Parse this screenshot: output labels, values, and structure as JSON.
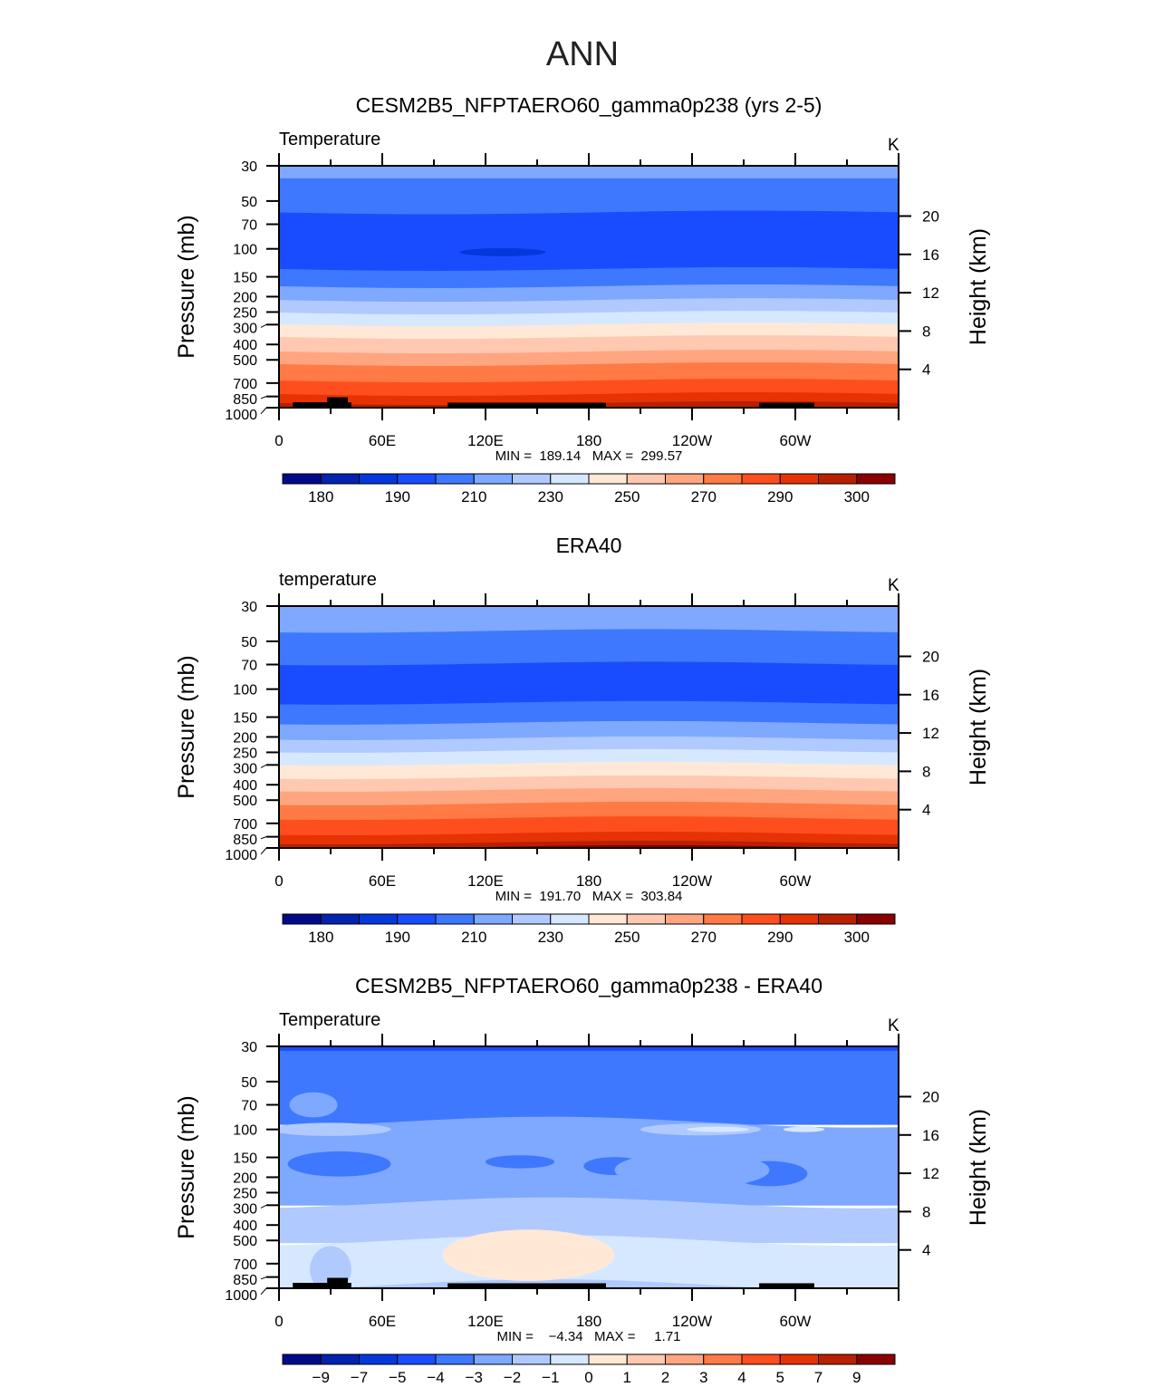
{
  "title": "ANN",
  "colors": [
    "#020a8a",
    "#0322b0",
    "#0437dc",
    "#1a4cff",
    "#3e78ff",
    "#7fa8ff",
    "#b0caff",
    "#d6e8ff",
    "#ffe8d6",
    "#ffc8b0",
    "#ffa680",
    "#ff7a45",
    "#ff4e1e",
    "#e63205",
    "#b82000",
    "#8b0000"
  ],
  "chart_data": [
    {
      "type": "heatmap",
      "title": "CESM2B5_NFPTAERO60_gamma0p238 (yrs 2-5)",
      "left_label": "Temperature",
      "units": "K",
      "ylabel": "Pressure (mb)",
      "ylabel_right": "Height (km)",
      "stats": "MIN =  189.14   MAX =  299.57",
      "xlim": [
        0,
        360
      ],
      "ylim": [
        1000,
        30
      ],
      "x_ticks": [
        {
          "v": 0,
          "l": "0"
        },
        {
          "v": 60,
          "l": "60E"
        },
        {
          "v": 120,
          "l": "120E"
        },
        {
          "v": 180,
          "l": "180"
        },
        {
          "v": 240,
          "l": "120W"
        },
        {
          "v": 300,
          "l": "60W"
        }
      ],
      "y_ticks": [
        "30",
        "50",
        "70",
        "100",
        "150",
        "200",
        "250",
        "300",
        "400",
        "500",
        "700",
        "850",
        "1000"
      ],
      "height_ticks": [
        "20",
        "16",
        "12",
        "8",
        "4"
      ],
      "levels": [
        "180",
        "",
        "190",
        "",
        "210",
        "",
        "230",
        "",
        "250",
        "",
        "270",
        "",
        "290",
        "",
        "300"
      ],
      "bands": [
        [
          30,
          36,
          5
        ],
        [
          36,
          59,
          4
        ],
        [
          59,
          134,
          3
        ],
        [
          134,
          172,
          4
        ],
        [
          172,
          210,
          5
        ],
        [
          210,
          252,
          6
        ],
        [
          252,
          299,
          7
        ],
        [
          299,
          359,
          8
        ],
        [
          359,
          443,
          9
        ],
        [
          443,
          532,
          10
        ],
        [
          532,
          675,
          11
        ],
        [
          675,
          821,
          12
        ],
        [
          821,
          936,
          13
        ],
        [
          936,
          1000,
          14
        ]
      ],
      "blobs": [
        [
          130,
          105,
          25,
          6,
          2
        ]
      ],
      "topography": [
        [
          8,
          42,
          925
        ],
        [
          28,
          40,
          860
        ],
        [
          98,
          190,
          930
        ],
        [
          279,
          311,
          930
        ]
      ]
    },
    {
      "type": "heatmap",
      "title": "ERA40",
      "left_label": "temperature",
      "units": "K",
      "ylabel": "Pressure (mb)",
      "ylabel_right": "Height (km)",
      "stats": "MIN =  191.70   MAX =  303.84",
      "xlim": [
        0,
        360
      ],
      "ylim": [
        1000,
        30
      ],
      "x_ticks": [
        {
          "v": 0,
          "l": "0"
        },
        {
          "v": 60,
          "l": "60E"
        },
        {
          "v": 120,
          "l": "120E"
        },
        {
          "v": 180,
          "l": "180"
        },
        {
          "v": 240,
          "l": "120W"
        },
        {
          "v": 300,
          "l": "60W"
        }
      ],
      "y_ticks": [
        "30",
        "50",
        "70",
        "100",
        "150",
        "200",
        "250",
        "300",
        "400",
        "500",
        "700",
        "850",
        "1000"
      ],
      "height_ticks": [
        "20",
        "16",
        "12",
        "8",
        "4"
      ],
      "levels": [
        "180",
        "",
        "190",
        "",
        "210",
        "",
        "230",
        "",
        "250",
        "",
        "270",
        "",
        "290",
        "",
        "300"
      ],
      "bands": [
        [
          30,
          43,
          5
        ],
        [
          43,
          69,
          4
        ],
        [
          69,
          122,
          3
        ],
        [
          122,
          163,
          4
        ],
        [
          163,
          204,
          5
        ],
        [
          204,
          245,
          6
        ],
        [
          245,
          295,
          7
        ],
        [
          295,
          359,
          8
        ],
        [
          359,
          431,
          9
        ],
        [
          431,
          525,
          10
        ],
        [
          525,
          649,
          11
        ],
        [
          649,
          811,
          12
        ],
        [
          811,
          924,
          13
        ],
        [
          924,
          985,
          14
        ],
        [
          985,
          1000,
          15
        ]
      ],
      "blobs": [],
      "topography": []
    },
    {
      "type": "heatmap",
      "title": "CESM2B5_NFPTAERO60_gamma0p238 - ERA40",
      "left_label": "Temperature",
      "units": "K",
      "ylabel": "Pressure (mb)",
      "ylabel_right": "Height (km)",
      "stats": "MIN =    −4.34   MAX =     1.71",
      "xlim": [
        0,
        360
      ],
      "ylim": [
        1000,
        30
      ],
      "x_ticks": [
        {
          "v": 0,
          "l": "0"
        },
        {
          "v": 60,
          "l": "60E"
        },
        {
          "v": 120,
          "l": "120E"
        },
        {
          "v": 180,
          "l": "180"
        },
        {
          "v": 240,
          "l": "120W"
        },
        {
          "v": 300,
          "l": "60W"
        }
      ],
      "y_ticks": [
        "30",
        "50",
        "70",
        "100",
        "150",
        "200",
        "250",
        "300",
        "400",
        "500",
        "700",
        "850",
        "1000"
      ],
      "height_ticks": [
        "20",
        "16",
        "12",
        "8",
        "4"
      ],
      "levels": [
        "−9",
        "−7",
        "−5",
        "−4",
        "−3",
        "−2",
        "−1",
        "0",
        "1",
        "2",
        "3",
        "4",
        "5",
        "7",
        "9"
      ],
      "bands": [
        [
          30,
          32,
          3
        ],
        [
          32,
          90,
          4
        ],
        [
          90,
          290,
          5
        ],
        [
          290,
          500,
          6
        ],
        [
          500,
          950,
          7
        ],
        [
          950,
          1000,
          6
        ]
      ],
      "blobs": [
        [
          20,
          70,
          14,
          20,
          5
        ],
        [
          30,
          100,
          35,
          10,
          6
        ],
        [
          35,
          165,
          30,
          20,
          4
        ],
        [
          140,
          160,
          20,
          10,
          4
        ],
        [
          195,
          170,
          18,
          14,
          4
        ],
        [
          245,
          100,
          35,
          9,
          6
        ],
        [
          255,
          100,
          18,
          4,
          7
        ],
        [
          305,
          100,
          12,
          4,
          7
        ],
        [
          285,
          190,
          22,
          20,
          4
        ],
        [
          235,
          205,
          6,
          4,
          4
        ],
        [
          30,
          760,
          12,
          40,
          6
        ],
        [
          145,
          620,
          50,
          45,
          8
        ],
        [
          240,
          180,
          45,
          30,
          5
        ]
      ],
      "topography": [
        [
          8,
          42,
          925
        ],
        [
          28,
          40,
          860
        ],
        [
          98,
          190,
          930
        ],
        [
          279,
          311,
          930
        ]
      ]
    }
  ]
}
